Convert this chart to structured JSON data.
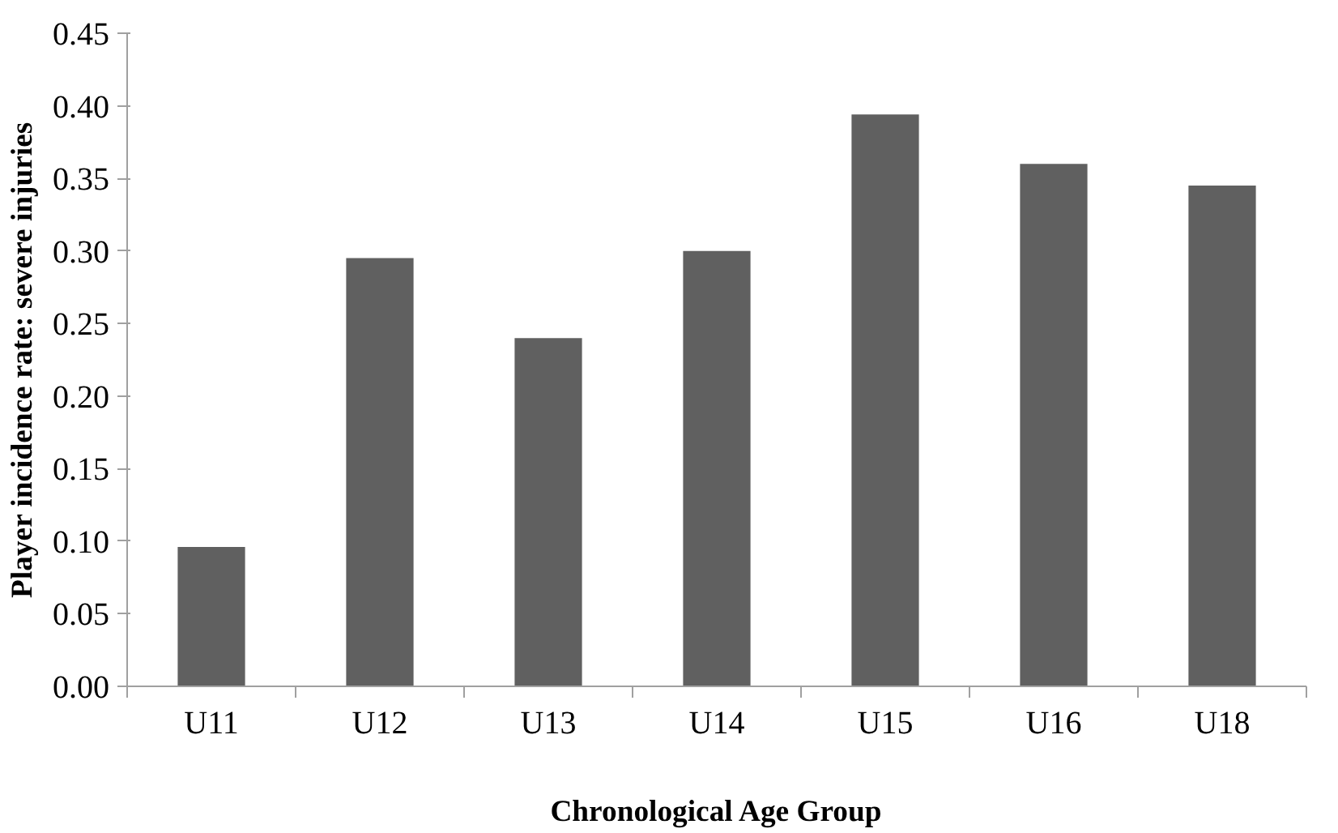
{
  "chart_data": {
    "type": "bar",
    "xlabel": "Chronological Age Group",
    "ylabel": "Player incidence rate: severe injuries",
    "categories": [
      "U11",
      "U12",
      "U13",
      "U14",
      "U15",
      "U16",
      "U18"
    ],
    "values": [
      0.096,
      0.295,
      0.24,
      0.3,
      0.394,
      0.36,
      0.345
    ],
    "color": "#606060",
    "ylim": [
      0,
      0.45
    ],
    "yticks": [
      {
        "value": 0,
        "label": "0.00"
      },
      {
        "value": 0.05,
        "label": "0.05"
      },
      {
        "value": 0.1,
        "label": "0.10"
      },
      {
        "value": 0.15,
        "label": "0.15"
      },
      {
        "value": 0.2,
        "label": "0.20"
      },
      {
        "value": 0.25,
        "label": "0.25"
      },
      {
        "value": 0.3,
        "label": "0.30"
      },
      {
        "value": 0.35,
        "label": "0.35"
      },
      {
        "value": 0.4,
        "label": "0.40"
      },
      {
        "value": 0.45,
        "label": "0.45"
      }
    ],
    "grid": false
  }
}
